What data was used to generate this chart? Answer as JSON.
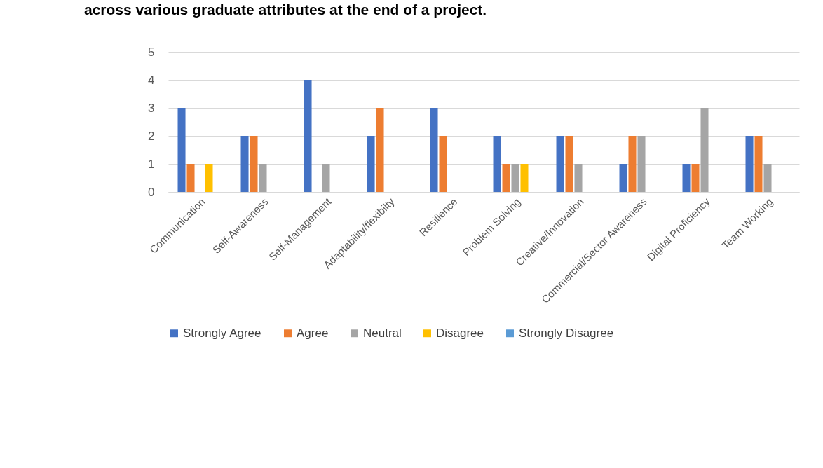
{
  "chart_data": {
    "type": "bar",
    "title": "across various graduate attributes at the end of a project.",
    "categories": [
      "Communication",
      "Self-Awareness",
      "Self-Management",
      "Adaptability/flexibilty",
      "Resilience",
      "Problem Solving",
      "Creative/Innovation",
      "Commercial/Sector Awareness",
      "Digital Proficiency",
      "Team Working"
    ],
    "series": [
      {
        "name": "Strongly Agree",
        "color": "#4472c4",
        "values": [
          3,
          2,
          4,
          2,
          3,
          2,
          2,
          1,
          1,
          2
        ]
      },
      {
        "name": "Agree",
        "color": "#ed7d31",
        "values": [
          1,
          2,
          0,
          3,
          2,
          1,
          2,
          2,
          1,
          2
        ]
      },
      {
        "name": "Neutral",
        "color": "#a5a5a5",
        "values": [
          0,
          1,
          1,
          0,
          0,
          1,
          1,
          2,
          3,
          1
        ]
      },
      {
        "name": "Disagree",
        "color": "#ffc000",
        "values": [
          1,
          0,
          0,
          0,
          0,
          1,
          0,
          0,
          0,
          0
        ]
      },
      {
        "name": "Strongly Disagree",
        "color": "#5b9bd5",
        "values": [
          0,
          0,
          0,
          0,
          0,
          0,
          0,
          0,
          0,
          0
        ]
      }
    ],
    "ylim": [
      0,
      5
    ],
    "yticks": [
      0,
      1,
      2,
      3,
      4,
      5
    ],
    "grid": "y",
    "legend": "bottom"
  }
}
